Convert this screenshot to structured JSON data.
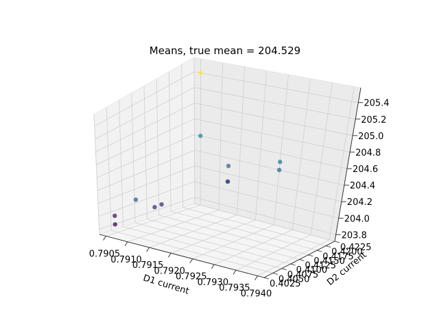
{
  "chart_data": {
    "type": "scatter",
    "projection": "3d",
    "title": "Means, true mean = 204.529",
    "xlabel": "D1 current",
    "ylabel": "D2 current",
    "zlabel": "",
    "grid": true,
    "colormap": "viridis",
    "xlim": [
      0.79035,
      0.79415
    ],
    "ylim": [
      0.4025,
      0.4225
    ],
    "zlim": [
      203.72,
      205.58
    ],
    "xticks": [
      "0.7905",
      "0.7910",
      "0.7915",
      "0.7920",
      "0.7925",
      "0.7930",
      "0.7935",
      "0.7940"
    ],
    "yticks": [
      "0.4025",
      "0.4050",
      "0.4075",
      "0.4100",
      "0.4125",
      "0.4150",
      "0.4175",
      "0.4200",
      "0.4225"
    ],
    "zticks": [
      "203.8",
      "204.0",
      "204.2",
      "204.4",
      "204.6",
      "204.8",
      "205.0",
      "205.2",
      "205.4"
    ],
    "points": [
      {
        "x": 0.7905,
        "y": 0.4045,
        "z": 203.85
      },
      {
        "x": 0.7905,
        "y": 0.4045,
        "z": 203.98
      },
      {
        "x": 0.791,
        "y": 0.4085,
        "z": 204.08
      },
      {
        "x": 0.791,
        "y": 0.41,
        "z": 204.08
      },
      {
        "x": 0.791,
        "y": 0.4045,
        "z": 204.3
      },
      {
        "x": 0.7915,
        "y": 0.42,
        "z": 204.2
      },
      {
        "x": 0.7915,
        "y": 0.42,
        "z": 204.2
      },
      {
        "x": 0.7915,
        "y": 0.42,
        "z": 204.4
      },
      {
        "x": 0.7925,
        "y": 0.4225,
        "z": 204.4
      },
      {
        "x": 0.7925,
        "y": 0.4225,
        "z": 204.5
      },
      {
        "x": 0.7905,
        "y": 0.4225,
        "z": 204.6
      },
      {
        "x": 0.7905,
        "y": 0.4225,
        "z": 205.4
      }
    ]
  }
}
